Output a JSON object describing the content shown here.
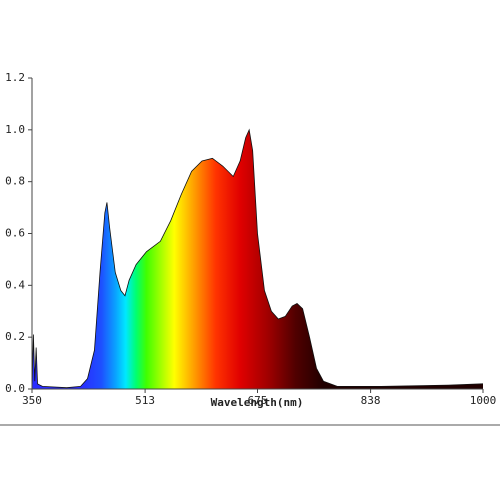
{
  "chart_data": {
    "type": "area",
    "xlabel": "Wavelength(nm)",
    "x": [
      350,
      352,
      354,
      356,
      358,
      365,
      400,
      420,
      430,
      440,
      448,
      455,
      458,
      462,
      470,
      478,
      484,
      490,
      500,
      515,
      535,
      550,
      565,
      580,
      595,
      610,
      625,
      640,
      650,
      658,
      663,
      668,
      675,
      685,
      695,
      705,
      715,
      725,
      732,
      740,
      750,
      760,
      770,
      790,
      850,
      950,
      1000
    ],
    "values": [
      0,
      0.21,
      0.03,
      0.16,
      0.02,
      0.01,
      0.005,
      0.01,
      0.04,
      0.15,
      0.45,
      0.68,
      0.72,
      0.62,
      0.45,
      0.38,
      0.36,
      0.42,
      0.48,
      0.53,
      0.57,
      0.65,
      0.75,
      0.84,
      0.88,
      0.89,
      0.86,
      0.82,
      0.88,
      0.97,
      1.0,
      0.92,
      0.6,
      0.38,
      0.3,
      0.27,
      0.28,
      0.32,
      0.33,
      0.31,
      0.2,
      0.08,
      0.03,
      0.01,
      0.01,
      0.015,
      0.02
    ],
    "xlim": [
      350,
      1000
    ],
    "xticks": [
      350,
      513,
      675,
      838,
      1000
    ],
    "ylim": [
      0,
      1.2
    ],
    "yticks": [
      {
        "value": 0,
        "label": "0.0"
      },
      {
        "value": 0.2,
        "label": "0.2"
      },
      {
        "value": 0.4,
        "label": "0.4"
      },
      {
        "value": 0.6,
        "label": "0.6"
      },
      {
        "value": 0.8,
        "label": "0.8"
      },
      {
        "value": 1,
        "label": "1.0"
      },
      {
        "value": 1.2,
        "label": "1.2"
      }
    ],
    "fill_gradient": [
      [
        420,
        "#2a2cff"
      ],
      [
        450,
        "#1e50ff"
      ],
      [
        470,
        "#0aa0ff"
      ],
      [
        485,
        "#00e8ff"
      ],
      [
        500,
        "#00ff70"
      ],
      [
        515,
        "#40ff00"
      ],
      [
        555,
        "#ffff00"
      ],
      [
        585,
        "#ff9900"
      ],
      [
        615,
        "#ff3300"
      ],
      [
        650,
        "#e00000"
      ],
      [
        690,
        "#a00000"
      ],
      [
        730,
        "#500000"
      ],
      [
        770,
        "#200000"
      ]
    ],
    "line_color": "#111"
  }
}
